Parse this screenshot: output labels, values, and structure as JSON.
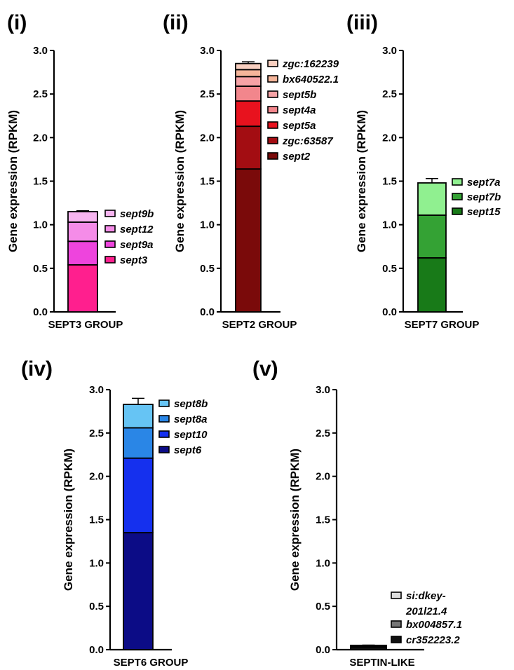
{
  "chart_data": [
    {
      "panel": "(i)",
      "type": "bar",
      "stacked": true,
      "categories": [
        "SEPT3 GROUP"
      ],
      "ylabel": "Gene expression (RPKM)",
      "ylim": [
        0,
        3.0
      ],
      "yticks": [
        "0.0",
        "0.5",
        "1.0",
        "1.5",
        "2.0",
        "2.5",
        "3.0"
      ],
      "series": [
        {
          "name": "sept3",
          "value": 0.54,
          "error": 0.1,
          "color": "#ff1f8e"
        },
        {
          "name": "sept9a",
          "value": 0.27,
          "error": 0.04,
          "color": "#ee44dd"
        },
        {
          "name": "sept12",
          "value": 0.22,
          "error": 0.04,
          "color": "#f58ce8"
        },
        {
          "name": "sept9b",
          "value": 0.12,
          "error": 0.01,
          "color": "#f7b5f0"
        }
      ]
    },
    {
      "panel": "(ii)",
      "type": "bar",
      "stacked": true,
      "categories": [
        "SEPT2 GROUP"
      ],
      "ylabel": "Gene expression (RPKM)",
      "ylim": [
        0,
        3.0
      ],
      "yticks": [
        "0.0",
        "0.5",
        "1.0",
        "1.5",
        "2.0",
        "2.5",
        "3.0"
      ],
      "series": [
        {
          "name": "sept2",
          "value": 1.64,
          "error": 0.32,
          "color": "#7a0a0a"
        },
        {
          "name": "zgc:63587",
          "value": 0.49,
          "error": 0.06,
          "color": "#a30d12"
        },
        {
          "name": "sept5a",
          "value": 0.29,
          "error": 0.06,
          "color": "#e8121e"
        },
        {
          "name": "sept4a",
          "value": 0.17,
          "error": 0.03,
          "color": "#f2868c"
        },
        {
          "name": "sept5b",
          "value": 0.11,
          "error": 0.02,
          "color": "#f6a3a6"
        },
        {
          "name": "bx640522.1",
          "value": 0.08,
          "error": 0.02,
          "color": "#f5b59a"
        },
        {
          "name": "zgc:162239",
          "value": 0.07,
          "error": 0.02,
          "color": "#f8cfc0"
        }
      ]
    },
    {
      "panel": "(iii)",
      "type": "bar",
      "stacked": true,
      "categories": [
        "SEPT7 GROUP"
      ],
      "ylabel": "Gene expression (RPKM)",
      "ylim": [
        0,
        3.0
      ],
      "yticks": [
        "0.0",
        "0.5",
        "1.0",
        "1.5",
        "2.0",
        "2.5",
        "3.0"
      ],
      "series": [
        {
          "name": "sept15",
          "value": 0.62,
          "error": 0.1,
          "color": "#187a18"
        },
        {
          "name": "sept7b",
          "value": 0.49,
          "error": 0.12,
          "color": "#34a234"
        },
        {
          "name": "sept7a",
          "value": 0.37,
          "error": 0.05,
          "color": "#90f090"
        }
      ]
    },
    {
      "panel": "(iv)",
      "type": "bar",
      "stacked": true,
      "categories": [
        "SEPT6 GROUP"
      ],
      "ylabel": "Gene expression (RPKM)",
      "ylim": [
        0,
        3.0
      ],
      "yticks": [
        "0.0",
        "0.5",
        "1.0",
        "1.5",
        "2.0",
        "2.5",
        "3.0"
      ],
      "series": [
        {
          "name": "sept6",
          "value": 1.35,
          "error": 0.2,
          "color": "#0c0c86"
        },
        {
          "name": "sept10",
          "value": 0.86,
          "error": 0.24,
          "color": "#1530ee"
        },
        {
          "name": "sept8a",
          "value": 0.35,
          "error": 0.06,
          "color": "#2a86e6"
        },
        {
          "name": "sept8b",
          "value": 0.27,
          "error": 0.07,
          "color": "#66c4f4"
        }
      ]
    },
    {
      "panel": "(v)",
      "type": "bar",
      "stacked": true,
      "categories": [
        "SEPTIN-LIKE"
      ],
      "ylabel": "Gene expression (RPKM)",
      "ylim": [
        0,
        3.0
      ],
      "yticks": [
        "0.0",
        "0.5",
        "1.0",
        "1.5",
        "2.0",
        "2.5",
        "3.0"
      ],
      "series": [
        {
          "name": "cr352223.2",
          "value": 0.03,
          "error": 0.01,
          "color": "#111111"
        },
        {
          "name": "bx004857.1",
          "value": 0.015,
          "error": 0.005,
          "color": "#777777"
        },
        {
          "name": "si:dkey-201l21.4",
          "value": 0.005,
          "error": 0.003,
          "color": "#dddddd"
        }
      ]
    }
  ]
}
